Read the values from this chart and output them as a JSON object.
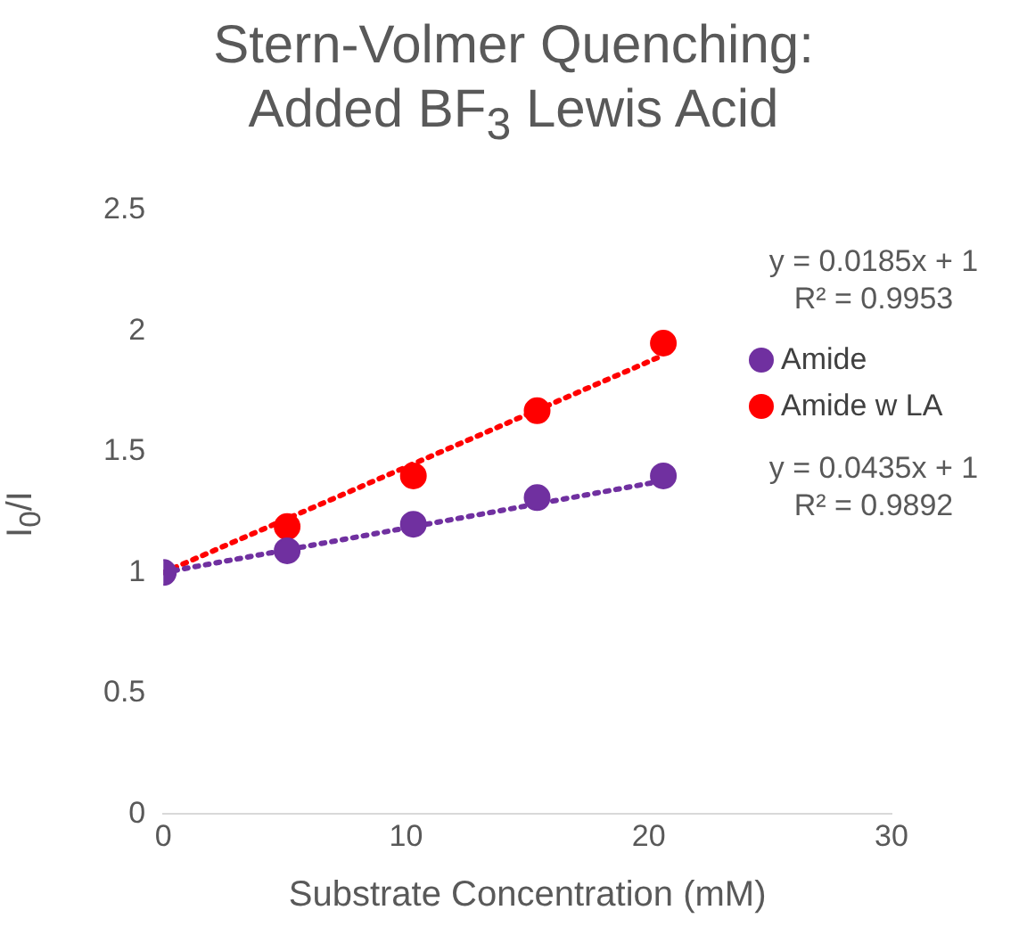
{
  "chart_data": {
    "type": "scatter",
    "title": "Stern-Volmer Quenching:\nAdded BF$_{3}$ Lewis Acid",
    "xlabel": "Substrate Concentration (mM)",
    "ylabel": "I$_{0}$/I",
    "series": [
      {
        "name": "Amide",
        "color": "#7030a0",
        "x": [
          0,
          5.1,
          10.3,
          15.4,
          20.6
        ],
        "values": [
          1,
          1.09,
          1.2,
          1.31,
          1.4
        ]
      },
      {
        "name": "Amide w LA",
        "color": "#ff0000",
        "x": [
          5.1,
          10.3,
          15.4,
          20.6
        ],
        "values": [
          1.19,
          1.4,
          1.67,
          1.95
        ]
      },
      {
        "type": "line",
        "color": "#7030a0",
        "x": [
          0,
          20.6
        ],
        "values": [
          1,
          1.38
        ],
        "line_style": "dotted",
        "marker": "none"
      },
      {
        "type": "line",
        "color": "#ff0000",
        "x": [
          0,
          20.6
        ],
        "values": [
          1,
          1.9
        ],
        "line_style": "dotted",
        "marker": "none"
      }
    ],
    "annotations": [
      "y = 0.0185x + 1\nR² = 0.9953",
      "y = 0.0435x + 1\nR² = 0.9892"
    ],
    "xlim": [
      0,
      30
    ],
    "xticks": [
      0,
      10,
      20,
      30
    ],
    "ylim": [
      0,
      2.5
    ],
    "yticks": [
      0,
      0.5,
      1,
      1.5,
      2,
      2.5
    ],
    "marker": "circle",
    "legend": "right"
  }
}
